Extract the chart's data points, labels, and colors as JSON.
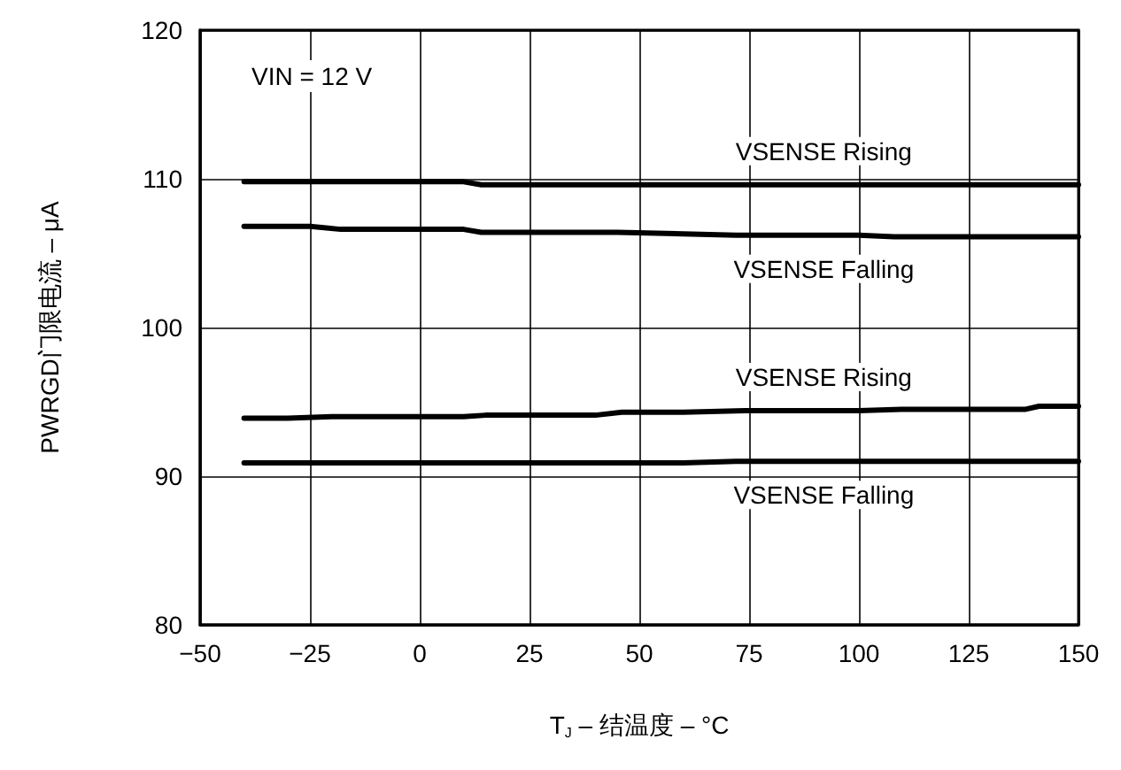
{
  "chart_data": {
    "type": "line",
    "xlabel": "T$_{J}$ – 结温度 – °C",
    "ylabel": "PWRGD门限电流 – μA",
    "xlim": [
      -50,
      150
    ],
    "xticks": [
      {
        "value": -50,
        "label": "−50"
      },
      {
        "value": -25,
        "label": "−25"
      },
      0,
      25,
      50,
      75,
      100,
      125,
      150
    ],
    "ylim": [
      80,
      120
    ],
    "yticks": [
      80,
      90,
      100,
      110,
      120
    ],
    "grid": true,
    "legend": false,
    "annotations": [
      "VIN = 12 V"
    ],
    "series": [
      {
        "name": "VSENSE Rising",
        "color": "#000000",
        "x": [
          -40,
          10,
          14,
          150
        ],
        "values": [
          109.8,
          109.8,
          109.6,
          109.6
        ]
      },
      {
        "name": "VSENSE Falling",
        "color": "#000000",
        "x": [
          -40,
          -25,
          -18,
          10,
          14,
          45,
          60,
          72,
          100,
          108,
          150
        ],
        "values": [
          106.8,
          106.8,
          106.6,
          106.6,
          106.4,
          106.4,
          106.3,
          106.2,
          106.2,
          106.1,
          106.1
        ]
      },
      {
        "name": "VSENSE Rising",
        "color": "#000000",
        "x": [
          -40,
          -30,
          -20,
          10,
          15,
          40,
          46,
          60,
          74,
          100,
          110,
          138,
          141,
          150
        ],
        "values": [
          93.9,
          93.9,
          94.0,
          94.0,
          94.1,
          94.1,
          94.3,
          94.3,
          94.4,
          94.4,
          94.5,
          94.5,
          94.7,
          94.7
        ]
      },
      {
        "name": "VSENSE Falling",
        "color": "#000000",
        "x": [
          -40,
          60,
          72,
          150
        ],
        "values": [
          90.9,
          90.9,
          91.0,
          91.0
        ]
      }
    ]
  }
}
